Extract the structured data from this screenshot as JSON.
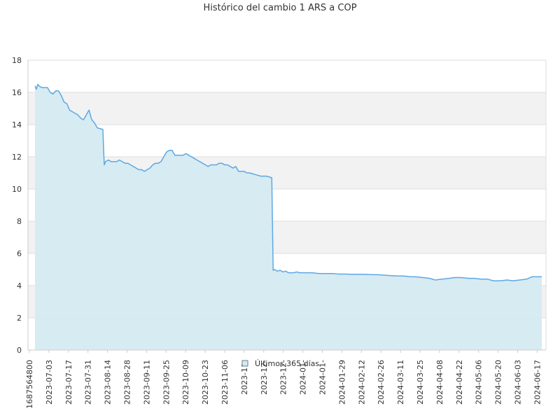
{
  "chart_data": {
    "type": "area",
    "title": "Histórico del cambio 1 ARS a COP",
    "xlabel": "",
    "ylabel": "",
    "ylim": [
      0,
      18
    ],
    "yticks": [
      0,
      2,
      4,
      6,
      8,
      10,
      12,
      14,
      16,
      18
    ],
    "grid": true,
    "colors": {
      "line": "#5ea8e2",
      "fill": "#d5eaf2",
      "band": "#f2f2f2",
      "grid": "#dddddd",
      "axis": "#cccccc"
    },
    "x_tick_labels": [
      "1687564800",
      "2023-07-03",
      "2023-07-17",
      "2023-07-31",
      "2023-08-14",
      "2023-08-28",
      "2023-09-11",
      "2023-09-25",
      "2023-10-09",
      "2023-10-23",
      "2023-11-06",
      "2023-11-",
      "2023-12-",
      "2023-12-",
      "2024-01-",
      "2024-01-",
      "2024-01-29",
      "2024-02-12",
      "2024-02-26",
      "2024-03-11",
      "2024-03-25",
      "2024-04-08",
      "2024-04-22",
      "2024-05-06",
      "2024-05-20",
      "2024-06-03",
      "2024-06-17"
    ],
    "legend": {
      "position": "bottom-center",
      "label": "Últimos 365 días"
    },
    "series": [
      {
        "name": "Últimos 365 días",
        "x": [
          "2023-06-24",
          "2023-06-25",
          "2023-06-26",
          "2023-06-27",
          "2023-06-29",
          "2023-07-01",
          "2023-07-03",
          "2023-07-05",
          "2023-07-07",
          "2023-07-09",
          "2023-07-11",
          "2023-07-13",
          "2023-07-15",
          "2023-07-17",
          "2023-07-19",
          "2023-07-21",
          "2023-07-23",
          "2023-07-25",
          "2023-07-27",
          "2023-07-29",
          "2023-07-31",
          "2023-08-02",
          "2023-08-04",
          "2023-08-06",
          "2023-08-08",
          "2023-08-10",
          "2023-08-12",
          "2023-08-13",
          "2023-08-14",
          "2023-08-16",
          "2023-08-18",
          "2023-08-20",
          "2023-08-22",
          "2023-08-24",
          "2023-08-26",
          "2023-08-28",
          "2023-08-30",
          "2023-09-01",
          "2023-09-03",
          "2023-09-05",
          "2023-09-07",
          "2023-09-09",
          "2023-09-11",
          "2023-09-13",
          "2023-09-15",
          "2023-09-17",
          "2023-09-19",
          "2023-09-21",
          "2023-09-23",
          "2023-09-25",
          "2023-09-27",
          "2023-09-29",
          "2023-10-01",
          "2023-10-03",
          "2023-10-05",
          "2023-10-07",
          "2023-10-09",
          "2023-10-11",
          "2023-10-13",
          "2023-10-15",
          "2023-10-17",
          "2023-10-19",
          "2023-10-21",
          "2023-10-23",
          "2023-10-25",
          "2023-10-27",
          "2023-10-29",
          "2023-10-31",
          "2023-11-02",
          "2023-11-04",
          "2023-11-06",
          "2023-11-08",
          "2023-11-10",
          "2023-11-12",
          "2023-11-14",
          "2023-11-16",
          "2023-11-18",
          "2023-11-20",
          "2023-11-22",
          "2023-11-24",
          "2023-11-26",
          "2023-11-28",
          "2023-11-30",
          "2023-12-02",
          "2023-12-04",
          "2023-12-06",
          "2023-12-08",
          "2023-12-10",
          "2023-12-12",
          "2023-12-13",
          "2023-12-14",
          "2023-12-16",
          "2023-12-18",
          "2023-12-20",
          "2023-12-22",
          "2023-12-24",
          "2023-12-26",
          "2023-12-28",
          "2023-12-30",
          "2024-01-01",
          "2024-01-05",
          "2024-01-10",
          "2024-01-15",
          "2024-01-20",
          "2024-01-25",
          "2024-01-29",
          "2024-02-03",
          "2024-02-08",
          "2024-02-12",
          "2024-02-17",
          "2024-02-22",
          "2024-02-26",
          "2024-03-02",
          "2024-03-07",
          "2024-03-11",
          "2024-03-16",
          "2024-03-21",
          "2024-03-25",
          "2024-03-30",
          "2024-04-04",
          "2024-04-08",
          "2024-04-13",
          "2024-04-18",
          "2024-04-22",
          "2024-04-27",
          "2024-05-02",
          "2024-05-06",
          "2024-05-11",
          "2024-05-16",
          "2024-05-20",
          "2024-05-25",
          "2024-05-30",
          "2024-06-03",
          "2024-06-08",
          "2024-06-13",
          "2024-06-17",
          "2024-06-20",
          "2024-06-24"
        ],
        "values": [
          16.4,
          16.2,
          16.5,
          16.4,
          16.3,
          16.3,
          16.3,
          16.0,
          15.9,
          16.1,
          16.1,
          15.8,
          15.4,
          15.3,
          14.9,
          14.8,
          14.7,
          14.6,
          14.4,
          14.3,
          14.6,
          14.9,
          14.3,
          14.1,
          13.8,
          13.75,
          13.7,
          11.5,
          11.7,
          11.8,
          11.7,
          11.7,
          11.7,
          11.8,
          11.7,
          11.6,
          11.6,
          11.5,
          11.4,
          11.3,
          11.2,
          11.2,
          11.1,
          11.2,
          11.3,
          11.5,
          11.6,
          11.6,
          11.7,
          12.0,
          12.3,
          12.4,
          12.4,
          12.1,
          12.1,
          12.1,
          12.1,
          12.2,
          12.1,
          12.0,
          11.9,
          11.8,
          11.7,
          11.6,
          11.5,
          11.4,
          11.5,
          11.5,
          11.5,
          11.6,
          11.6,
          11.5,
          11.5,
          11.4,
          11.3,
          11.4,
          11.1,
          11.1,
          11.1,
          11.0,
          11.0,
          10.95,
          10.9,
          10.85,
          10.8,
          10.8,
          10.8,
          10.75,
          10.7,
          4.95,
          5.0,
          4.9,
          4.95,
          4.85,
          4.9,
          4.8,
          4.8,
          4.8,
          4.85,
          4.8,
          4.8,
          4.8,
          4.75,
          4.75,
          4.75,
          4.72,
          4.72,
          4.7,
          4.7,
          4.7,
          4.68,
          4.68,
          4.65,
          4.62,
          4.6,
          4.6,
          4.55,
          4.55,
          4.5,
          4.45,
          4.35,
          4.4,
          4.45,
          4.5,
          4.5,
          4.45,
          4.45,
          4.4,
          4.4,
          4.3,
          4.3,
          4.35,
          4.3,
          4.35,
          4.4,
          4.55,
          4.55,
          4.55
        ]
      }
    ]
  }
}
